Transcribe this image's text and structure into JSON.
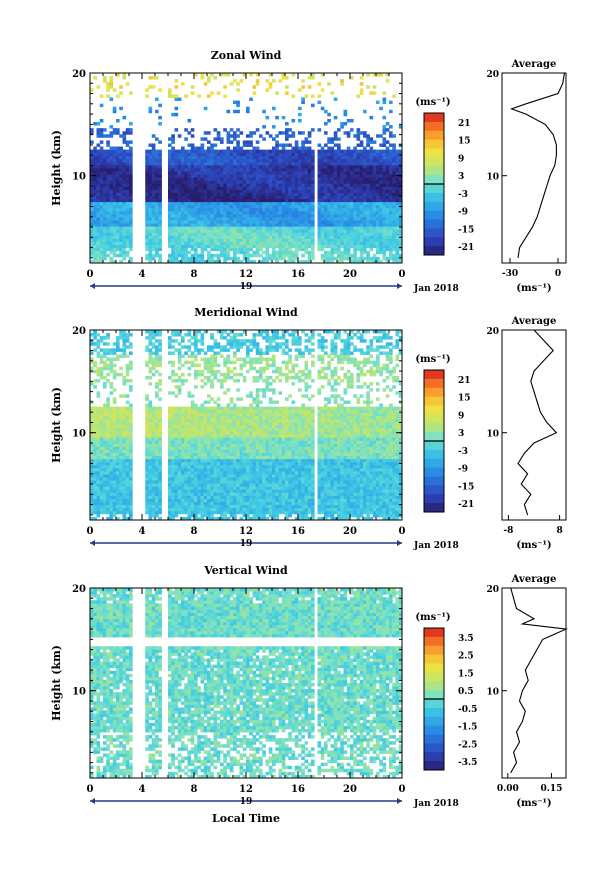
{
  "figure": {
    "date_label": "Jan 2018",
    "day_label": "19",
    "xlabel": "Local Time"
  },
  "chart_data": [
    {
      "type": "heatmap",
      "title": "Zonal Wind",
      "ylabel": "Height (km)",
      "xlabel": "",
      "x_ticks": [
        "0",
        "4",
        "8",
        "12",
        "16",
        "20",
        "0"
      ],
      "y_ticks": [
        "20",
        "10"
      ],
      "xlim": [
        0,
        24
      ],
      "ylim": [
        1.5,
        20
      ],
      "colorbar": {
        "unit": "(ms⁻¹)",
        "ticks": [
          "21",
          "15",
          "9",
          "3",
          "-3",
          "-9",
          "-15",
          "-21"
        ],
        "range": [
          -24,
          24
        ]
      },
      "gaps_hours": [
        [
          3.3,
          4.2
        ],
        [
          5.6,
          5.9
        ],
        [
          17.2,
          17.5
        ]
      ],
      "profile": [
        {
          "h": 2,
          "v": -25
        },
        {
          "h": 3,
          "v": -24
        },
        {
          "h": 4,
          "v": -20
        },
        {
          "h": 5,
          "v": -16
        },
        {
          "h": 6,
          "v": -13
        },
        {
          "h": 7,
          "v": -11
        },
        {
          "h": 8,
          "v": -9
        },
        {
          "h": 9,
          "v": -7
        },
        {
          "h": 10,
          "v": -5
        },
        {
          "h": 11,
          "v": -2
        },
        {
          "h": 12,
          "v": -1
        },
        {
          "h": 13,
          "v": -1
        },
        {
          "h": 14,
          "v": -3
        },
        {
          "h": 15,
          "v": -8
        },
        {
          "h": 16,
          "v": -20
        },
        {
          "h": 16.5,
          "v": -29
        },
        {
          "h": 17,
          "v": -20
        },
        {
          "h": 18,
          "v": 0
        },
        {
          "h": 19,
          "v": 3
        },
        {
          "h": 20,
          "v": 4
        }
      ],
      "average": {
        "title": "Average",
        "unit": "(ms⁻¹)",
        "x_ticks": [
          "-30",
          "0"
        ],
        "xlim": [
          -35,
          5
        ],
        "y_ticks": [
          "20",
          "10"
        ]
      }
    },
    {
      "type": "heatmap",
      "title": "Meridional Wind",
      "ylabel": "Height (km)",
      "xlabel": "",
      "x_ticks": [
        "0",
        "4",
        "8",
        "12",
        "16",
        "20",
        "0"
      ],
      "y_ticks": [
        "20",
        "10"
      ],
      "xlim": [
        0,
        24
      ],
      "ylim": [
        1.5,
        20
      ],
      "colorbar": {
        "unit": "(ms⁻¹)",
        "ticks": [
          "21",
          "15",
          "9",
          "3",
          "-3",
          "-9",
          "-15",
          "-21"
        ],
        "range": [
          -24,
          24
        ]
      },
      "gaps_hours": [
        [
          3.3,
          4.2
        ],
        [
          5.6,
          5.9
        ],
        [
          17.2,
          17.5
        ]
      ],
      "profile": [
        {
          "h": 2,
          "v": -2
        },
        {
          "h": 3,
          "v": -3
        },
        {
          "h": 4,
          "v": -1
        },
        {
          "h": 5,
          "v": -4
        },
        {
          "h": 6,
          "v": -2
        },
        {
          "h": 7,
          "v": -5
        },
        {
          "h": 8,
          "v": -3
        },
        {
          "h": 9,
          "v": 0
        },
        {
          "h": 10,
          "v": 7
        },
        {
          "h": 11,
          "v": 4
        },
        {
          "h": 12,
          "v": 2
        },
        {
          "h": 13,
          "v": 1
        },
        {
          "h": 14,
          "v": 0
        },
        {
          "h": 15,
          "v": -1
        },
        {
          "h": 16,
          "v": 0
        },
        {
          "h": 17,
          "v": 3
        },
        {
          "h": 18,
          "v": 6
        },
        {
          "h": 19,
          "v": 3
        },
        {
          "h": 20,
          "v": 0
        }
      ],
      "average": {
        "title": "Average",
        "unit": "(ms⁻¹)",
        "x_ticks": [
          "-8",
          "8"
        ],
        "xlim": [
          -10,
          10
        ],
        "y_ticks": [
          "20",
          "10"
        ]
      }
    },
    {
      "type": "heatmap",
      "title": "Vertical Wind",
      "ylabel": "Height (km)",
      "xlabel": "",
      "x_ticks": [
        "0",
        "4",
        "8",
        "12",
        "16",
        "20",
        "0"
      ],
      "y_ticks": [
        "20",
        "10"
      ],
      "xlim": [
        0,
        24
      ],
      "ylim": [
        1.5,
        20
      ],
      "colorbar": {
        "unit": "(ms⁻¹)",
        "ticks": [
          "3.5",
          "2.5",
          "1.5",
          "0.5",
          "-0.5",
          "-1.5",
          "-2.5",
          "-3.5"
        ],
        "range": [
          -4,
          4
        ]
      },
      "gaps_hours": [
        [
          3.3,
          4.2
        ],
        [
          5.6,
          5.9
        ],
        [
          17.2,
          17.5
        ]
      ],
      "profile": [
        {
          "h": 2,
          "v": 0.01
        },
        {
          "h": 3,
          "v": 0.03
        },
        {
          "h": 4,
          "v": 0.02
        },
        {
          "h": 5,
          "v": 0.04
        },
        {
          "h": 6,
          "v": 0.03
        },
        {
          "h": 7,
          "v": 0.05
        },
        {
          "h": 8,
          "v": 0.06
        },
        {
          "h": 9,
          "v": 0.04
        },
        {
          "h": 10,
          "v": 0.05
        },
        {
          "h": 11,
          "v": 0.07
        },
        {
          "h": 12,
          "v": 0.06
        },
        {
          "h": 13,
          "v": 0.08
        },
        {
          "h": 14,
          "v": 0.1
        },
        {
          "h": 15,
          "v": 0.12
        },
        {
          "h": 16,
          "v": 0.2
        },
        {
          "h": 16.5,
          "v": 0.05
        },
        {
          "h": 17,
          "v": 0.09
        },
        {
          "h": 18,
          "v": 0.03
        },
        {
          "h": 19,
          "v": 0.02
        },
        {
          "h": 20,
          "v": 0.01
        }
      ],
      "average": {
        "title": "Average",
        "unit": "(ms⁻¹)",
        "x_ticks": [
          "0.00",
          "0.15"
        ],
        "xlim": [
          -0.02,
          0.2
        ],
        "y_ticks": [
          "20",
          "10"
        ]
      }
    }
  ]
}
